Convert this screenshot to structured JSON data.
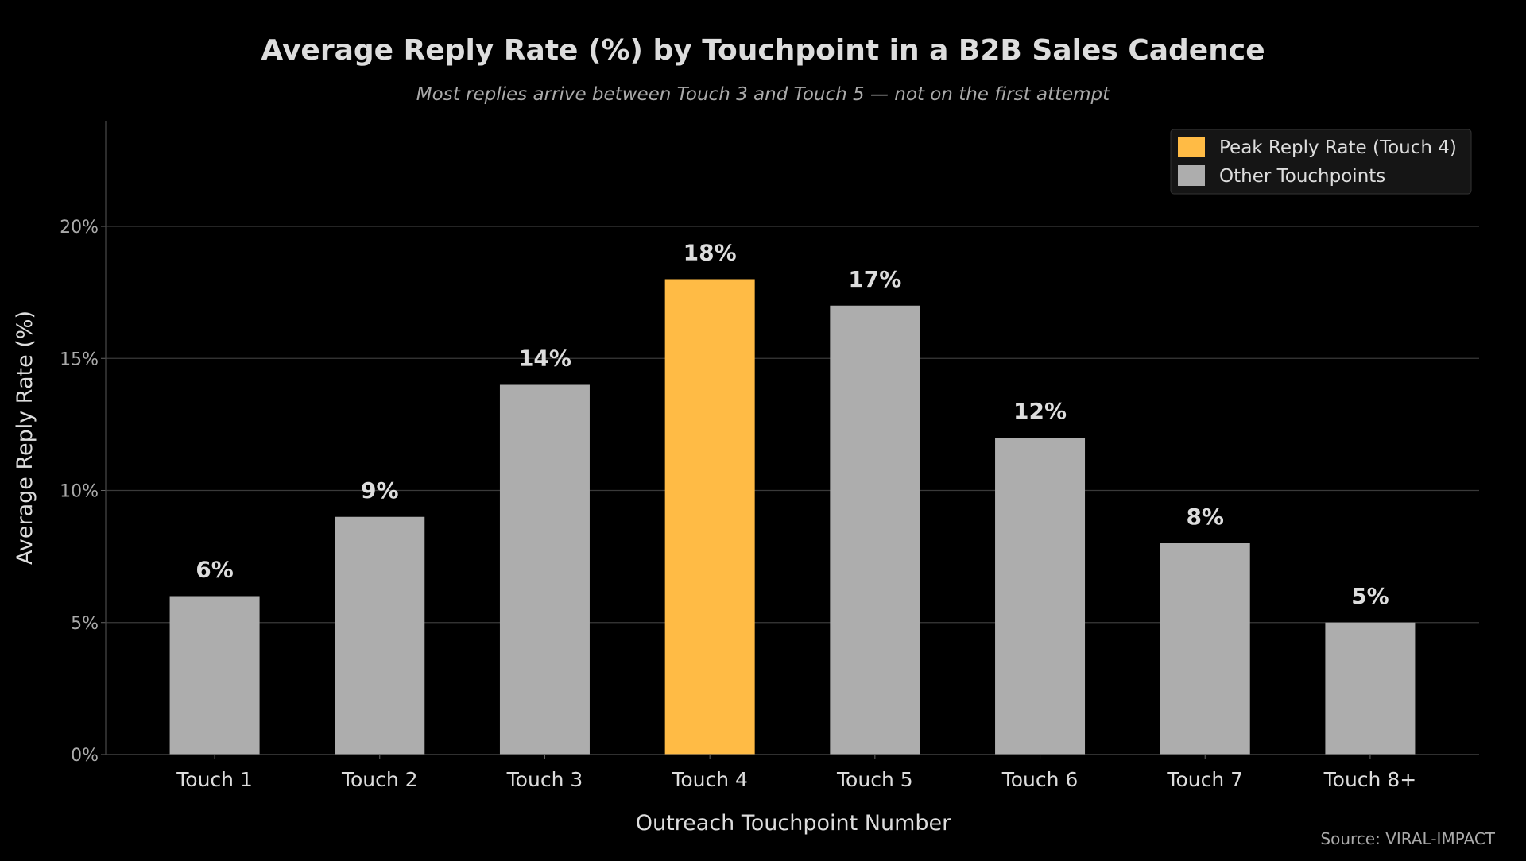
{
  "chart_data": {
    "type": "bar",
    "title": "Average Reply Rate (%) by Touchpoint in a B2B Sales Cadence",
    "subtitle": "Most replies arrive between Touch 3 and Touch 5 — not on the first attempt",
    "xlabel": "Outreach Touchpoint Number",
    "ylabel": "Average Reply Rate (%)",
    "categories": [
      "Touch 1",
      "Touch 2",
      "Touch 3",
      "Touch 4",
      "Touch 5",
      "Touch 6",
      "Touch 7",
      "Touch 8+"
    ],
    "values": [
      6,
      9,
      14,
      18,
      17,
      12,
      8,
      5
    ],
    "data_labels": [
      "6%",
      "9%",
      "14%",
      "18%",
      "17%",
      "12%",
      "8%",
      "5%"
    ],
    "highlight_index": 3,
    "ylim": [
      0,
      24
    ],
    "yticks": [
      0,
      5,
      10,
      15,
      20
    ],
    "ytick_labels": [
      "0%",
      "5%",
      "10%",
      "15%",
      "20%"
    ],
    "grid": "horizontal",
    "legend": {
      "placement": "top-right",
      "entries": [
        {
          "label": "Peak Reply Rate (Touch 4)",
          "color": "#FFBB45"
        },
        {
          "label": "Other Touchpoints",
          "color": "#ADADAD"
        }
      ]
    },
    "colors": {
      "highlight": "#FFBB45",
      "default": "#ADADAD",
      "background": "#000000",
      "text": "#DDDDDD",
      "grid": "#3A3A3A"
    },
    "source": "Source: VIRAL-IMPACT"
  }
}
